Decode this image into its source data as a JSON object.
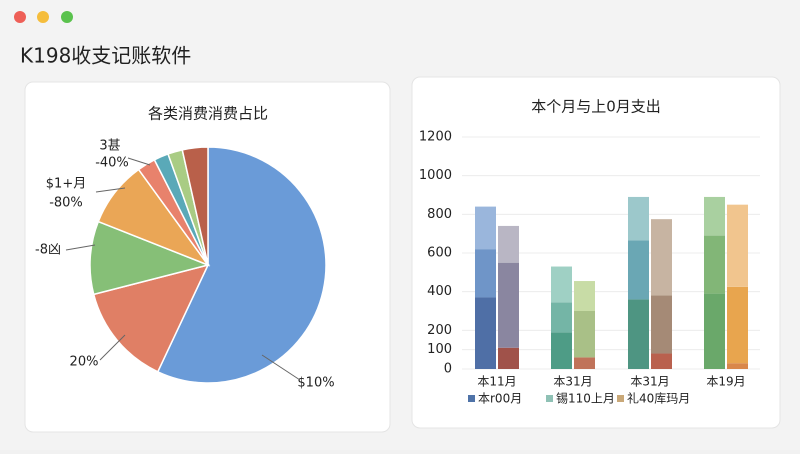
{
  "window": {
    "title": "K198收支记账软件"
  },
  "chart_data": [
    {
      "type": "pie",
      "title": "各类消费消费占比",
      "values": [
        57,
        14,
        10,
        9,
        2.5,
        2,
        2,
        3.5
      ],
      "colors": [
        "#6a9bd8",
        "#e07f65",
        "#86bf77",
        "#eaa656",
        "#e8826c",
        "#5aa9b8",
        "#a9cc84",
        "#b9604a"
      ],
      "annotations": [
        "3甚",
        "-40%",
        "$1+月",
        "-80%",
        "-8凶",
        "20%",
        "$10%"
      ]
    },
    {
      "type": "bar",
      "title": "本个月与上0月支出",
      "categories": [
        "本11月",
        "本31月",
        "本31月",
        "本19月"
      ],
      "ylim": [
        0,
        1200
      ],
      "yticks": [
        0,
        100,
        200,
        400,
        600,
        800,
        1000,
        1200
      ],
      "grid": true,
      "series": [
        {
          "name": "本r00月",
          "color": "#4f73a8",
          "values": [
            [
              370,
              110
            ],
            [
              190,
              60
            ],
            [
              360,
              80
            ],
            [
              390,
              30
            ]
          ],
          "colors": [
            [
              "#4f6fa6",
              "#a0524a"
            ],
            [
              "#4e9c86",
              "#c0735a"
            ],
            [
              "#4e9582",
              "#b9614e"
            ],
            [
              "#6aa86a",
              "#d9874a"
            ]
          ]
        },
        {
          "name": "锡110上月",
          "color": "#8fc1b5",
          "values": [
            [
              250,
              440
            ],
            [
              155,
              240
            ],
            [
              305,
              300
            ],
            [
              300,
              395
            ]
          ],
          "colors": [
            [
              "#6f95c8",
              "#8a86a0"
            ],
            [
              "#74b5a6",
              "#a9c087"
            ],
            [
              "#6aa7b4",
              "#a58a76"
            ],
            [
              "#82b677",
              "#e8a54e"
            ]
          ]
        },
        {
          "name": "礼40库玛月",
          "color": "#c9a878",
          "values": [
            [
              220,
              190
            ],
            [
              185,
              155
            ],
            [
              225,
              395
            ],
            [
              200,
              425
            ]
          ],
          "colors": [
            [
              "#9ab6dc",
              "#b9b6c4"
            ],
            [
              "#9fd0c4",
              "#c8dca6"
            ],
            [
              "#9cc8cb",
              "#c7b4a2"
            ],
            [
              "#a9d0a0",
              "#f1c58e"
            ]
          ]
        }
      ]
    }
  ]
}
